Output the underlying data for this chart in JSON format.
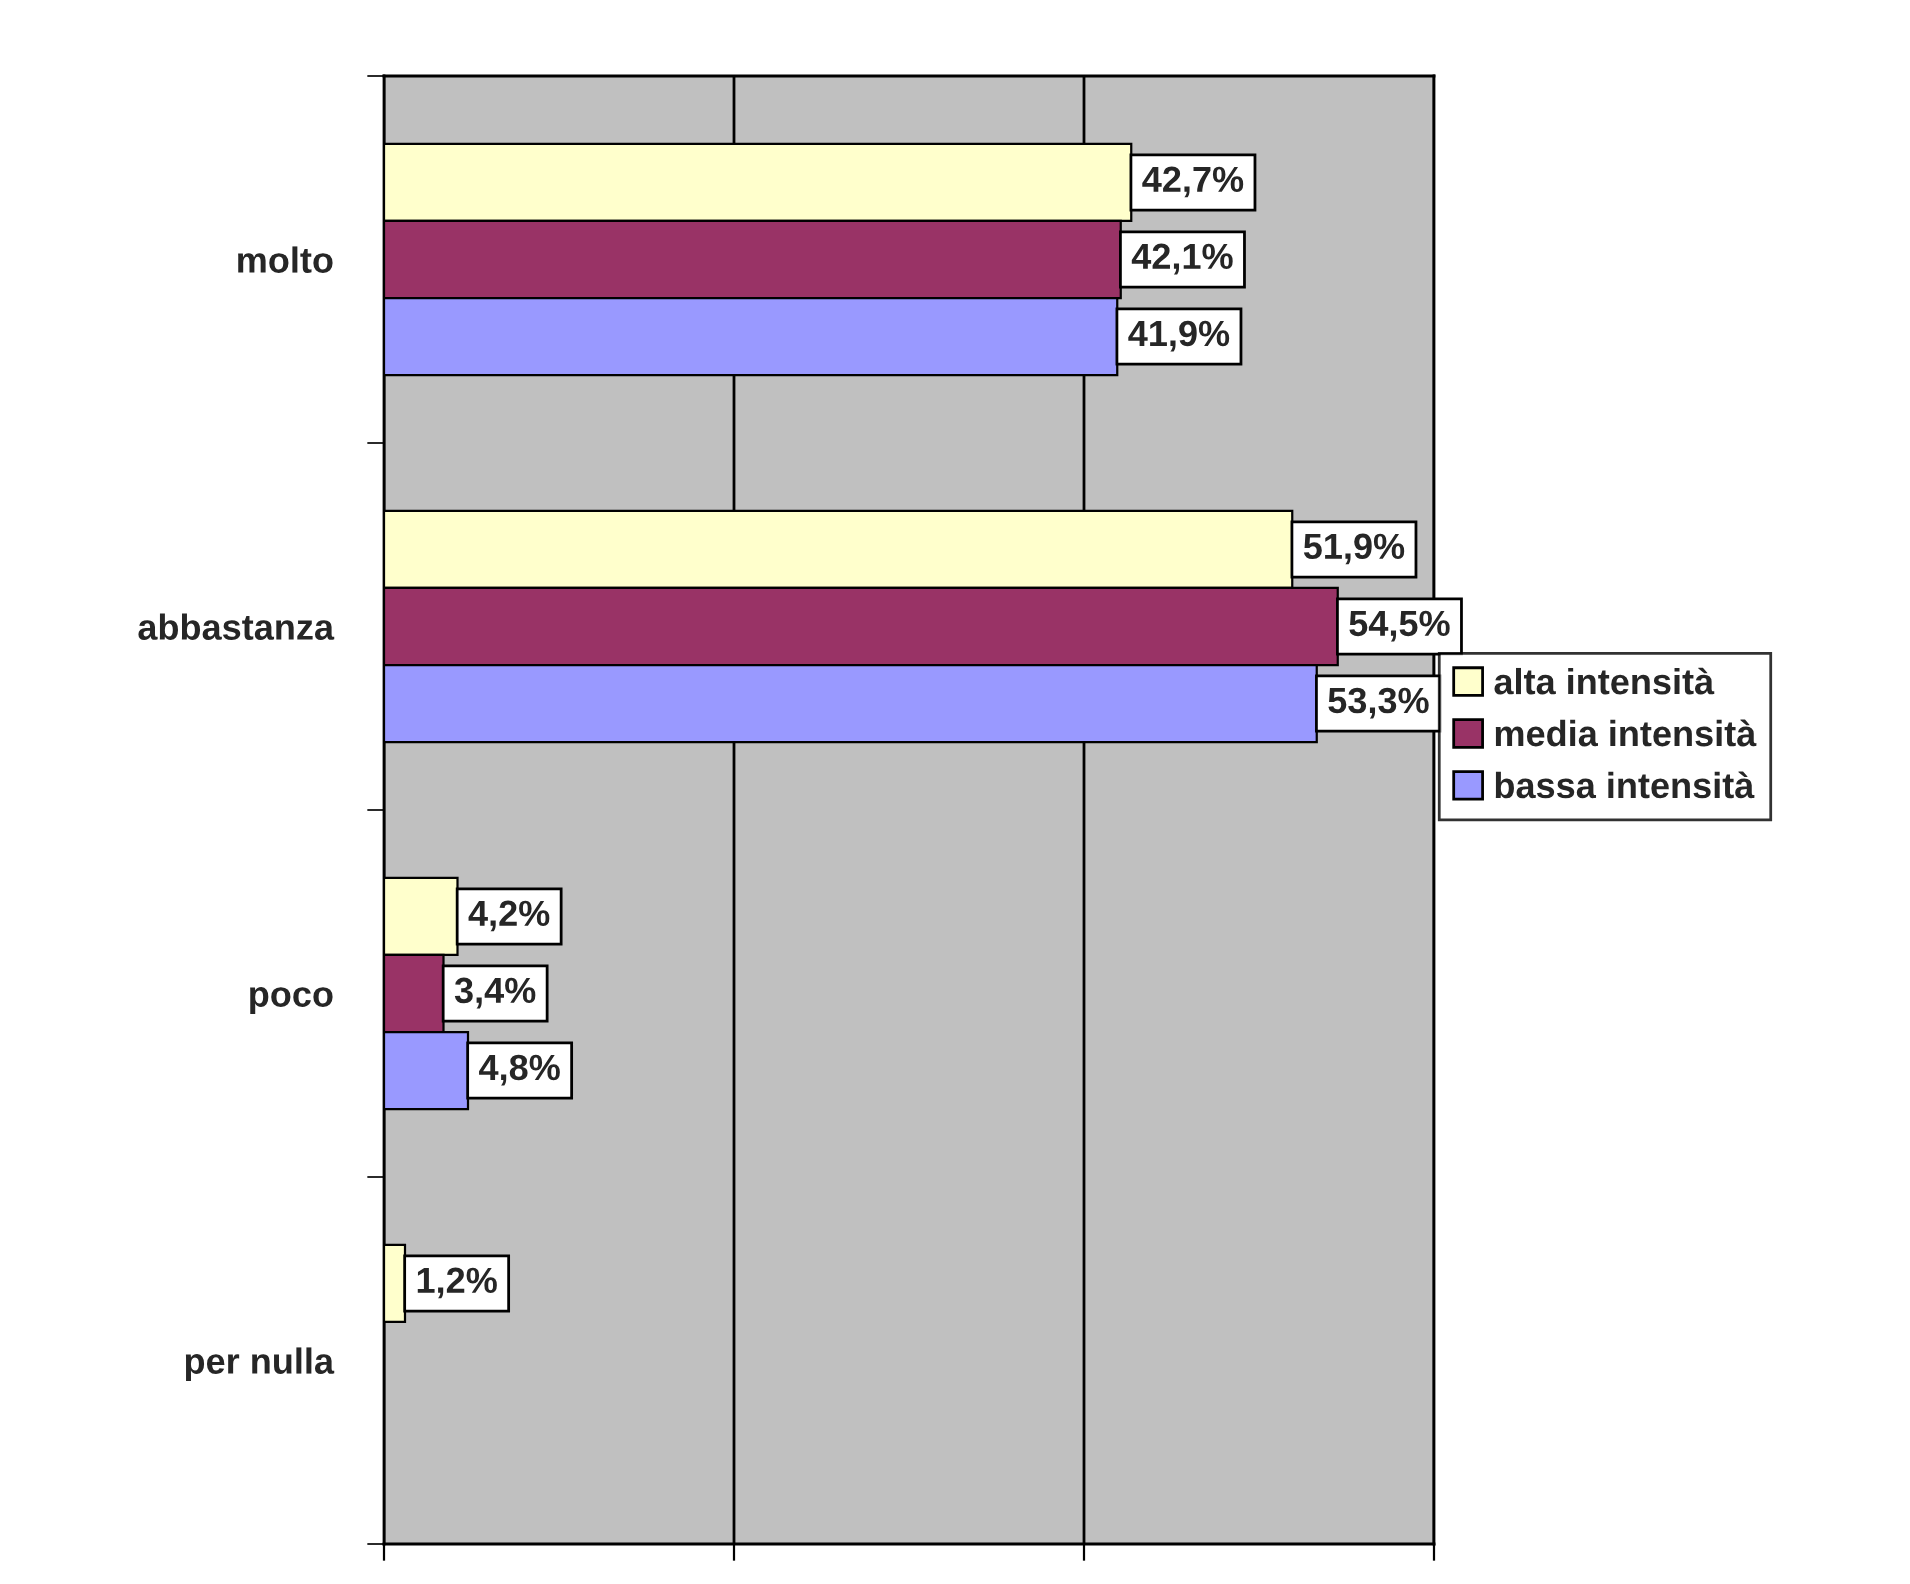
{
  "chart_data": {
    "type": "bar",
    "orientation": "horizontal",
    "categories": [
      "molto",
      "abbastanza",
      "poco",
      "per nulla"
    ],
    "series": [
      {
        "name": "alta intensità",
        "color": "#ffffcc",
        "values": [
          42.7,
          51.9,
          4.2,
          1.2
        ],
        "value_labels": [
          "42,7%",
          "51,9%",
          "4,2%",
          "1,2%"
        ]
      },
      {
        "name": "media intensità",
        "color": "#993366",
        "values": [
          42.1,
          54.5,
          3.4,
          null
        ],
        "value_labels": [
          "42,1%",
          "54,5%",
          "3,4%",
          null
        ]
      },
      {
        "name": "bassa intensità",
        "color": "#9999ff",
        "values": [
          41.9,
          53.3,
          4.8,
          null
        ],
        "value_labels": [
          "41,9%",
          "53,3%",
          "4,8%",
          null
        ]
      }
    ],
    "xlim": [
      0,
      60
    ],
    "xticks": [
      {
        "value": 0,
        "label": null
      },
      {
        "value": 20,
        "label": null
      },
      {
        "value": 40,
        "label": null
      },
      {
        "value": 60,
        "label": null
      }
    ],
    "tick_labels": "y",
    "grid": "x",
    "legend": "right"
  }
}
